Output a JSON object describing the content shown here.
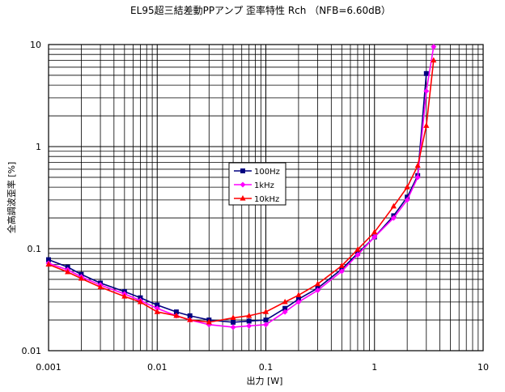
{
  "chart_data": {
    "type": "line",
    "title": "EL95超三結差動PPアンプ 歪率特性  Rch （NFB=6.60dB）",
    "xlabel": "出力 [W]",
    "ylabel": "全高調波歪率 [%]",
    "xscale": "log",
    "yscale": "log",
    "xlim": [
      0.001,
      10
    ],
    "ylim": [
      0.01,
      10
    ],
    "grid": true,
    "legend_position": "center",
    "x_ticks": [
      "0.001",
      "0.01",
      "0.1",
      "1",
      "10"
    ],
    "y_ticks": [
      "10",
      "1",
      "0.1",
      "0.01"
    ],
    "series": [
      {
        "name": "100Hz",
        "color": "#000080",
        "marker": "square",
        "x": [
          0.001,
          0.0015,
          0.002,
          0.003,
          0.005,
          0.007,
          0.01,
          0.015,
          0.02,
          0.03,
          0.05,
          0.07,
          0.1,
          0.15,
          0.2,
          0.3,
          0.5,
          0.7,
          1,
          1.5,
          2,
          2.5,
          3,
          3.5
        ],
        "y": [
          0.078,
          0.066,
          0.056,
          0.046,
          0.038,
          0.033,
          0.028,
          0.024,
          0.022,
          0.02,
          0.019,
          0.0195,
          0.02,
          0.026,
          0.032,
          0.041,
          0.063,
          0.09,
          0.13,
          0.21,
          0.32,
          0.52,
          5.2,
          10.5
        ]
      },
      {
        "name": "1kHz",
        "color": "#ff00ff",
        "marker": "diamond",
        "x": [
          0.001,
          0.0015,
          0.002,
          0.003,
          0.005,
          0.007,
          0.01,
          0.015,
          0.02,
          0.03,
          0.05,
          0.07,
          0.1,
          0.15,
          0.2,
          0.3,
          0.5,
          0.7,
          1,
          1.5,
          2,
          2.5,
          3,
          3.5
        ],
        "y": [
          0.072,
          0.062,
          0.053,
          0.044,
          0.036,
          0.031,
          0.026,
          0.022,
          0.02,
          0.018,
          0.017,
          0.0175,
          0.018,
          0.024,
          0.03,
          0.039,
          0.06,
          0.087,
          0.13,
          0.2,
          0.3,
          0.5,
          3.5,
          9.5
        ]
      },
      {
        "name": "10kHz",
        "color": "#ff0000",
        "marker": "triangle",
        "x": [
          0.001,
          0.0015,
          0.002,
          0.003,
          0.005,
          0.007,
          0.01,
          0.015,
          0.02,
          0.03,
          0.05,
          0.07,
          0.1,
          0.15,
          0.2,
          0.3,
          0.5,
          0.7,
          1,
          1.5,
          2,
          2.5,
          3,
          3.5
        ],
        "y": [
          0.07,
          0.059,
          0.051,
          0.042,
          0.034,
          0.03,
          0.024,
          0.022,
          0.02,
          0.019,
          0.021,
          0.022,
          0.024,
          0.03,
          0.035,
          0.045,
          0.068,
          0.098,
          0.145,
          0.26,
          0.4,
          0.65,
          1.6,
          7.0
        ]
      }
    ]
  }
}
